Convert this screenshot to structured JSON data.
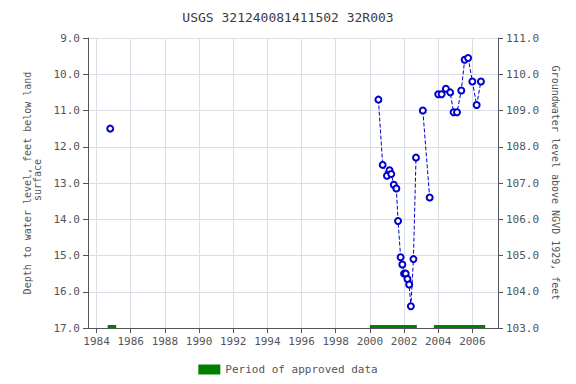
{
  "chart_data": {
    "type": "line",
    "title": "USGS 321240081411502 32R003",
    "ylabel": "Depth to water level, feet below land\n surface",
    "y2label": "Groundwater level above NGVD 1929, feet",
    "xlim": [
      1983.5,
      2007.5
    ],
    "xticks": [
      1984,
      1986,
      1988,
      1990,
      1992,
      1994,
      1996,
      1998,
      2000,
      2002,
      2004,
      2006
    ],
    "ylim": [
      17.0,
      9.0
    ],
    "yticks": [
      {
        "value": 9.0,
        "label": "9.0"
      },
      {
        "value": 10.0,
        "label": "10.0"
      },
      {
        "value": 11.0,
        "label": "11.0"
      },
      {
        "value": 12.0,
        "label": "12.0"
      },
      {
        "value": 13.0,
        "label": "13.0"
      },
      {
        "value": 14.0,
        "label": "14.0"
      },
      {
        "value": 15.0,
        "label": "15.0"
      },
      {
        "value": 16.0,
        "label": "16.0"
      },
      {
        "value": 17.0,
        "label": "17.0"
      }
    ],
    "y2lim": [
      103.0,
      111.0
    ],
    "y2ticks": [
      {
        "value": 103.0,
        "label": "103.0"
      },
      {
        "value": 104.0,
        "label": "104.0"
      },
      {
        "value": 105.0,
        "label": "105.0"
      },
      {
        "value": 106.0,
        "label": "106.0"
      },
      {
        "value": 107.0,
        "label": "107.0"
      },
      {
        "value": 108.0,
        "label": "108.0"
      },
      {
        "value": 109.0,
        "label": "109.0"
      },
      {
        "value": 110.0,
        "label": "110.0"
      },
      {
        "value": 111.0,
        "label": "111.0"
      }
    ],
    "grid": true,
    "legend": "bottom",
    "series": [
      {
        "x": [
          1984.8
        ],
        "values": [
          11.5
        ],
        "color": "#0000CC",
        "marker": "circle-open",
        "line_style": "dashed"
      },
      {
        "x": [
          2000.5,
          2000.75,
          2001.0,
          2001.15,
          2001.25,
          2001.4,
          2001.55,
          2001.65,
          2001.8,
          2001.9,
          2002.0,
          2002.1,
          2002.2,
          2002.3,
          2002.4,
          2002.55,
          2002.7
        ],
        "values": [
          10.7,
          12.5,
          12.8,
          12.65,
          12.75,
          13.05,
          13.15,
          14.05,
          15.05,
          15.25,
          15.5,
          15.5,
          15.65,
          15.8,
          16.4,
          15.1,
          12.3
        ],
        "color": "#0000CC",
        "marker": "circle-open",
        "line_style": "dashed"
      },
      {
        "x": [
          2003.1,
          2003.5
        ],
        "values": [
          11.0,
          13.4
        ],
        "color": "#0000CC",
        "marker": "circle-open",
        "line_style": "dashed"
      },
      {
        "x": [
          2004.0,
          2004.2,
          2004.45,
          2004.7,
          2004.9,
          2005.1,
          2005.35,
          2005.55,
          2005.75,
          2006.0,
          2006.25,
          2006.5
        ],
        "values": [
          10.55,
          10.55,
          10.4,
          10.5,
          11.05,
          11.05,
          10.45,
          9.6,
          9.55,
          10.2,
          10.85,
          10.2
        ],
        "color": "#0000CC",
        "marker": "circle-open",
        "line_style": "dashed"
      }
    ],
    "approved_periods": [
      [
        1984.65,
        1985.15
      ],
      [
        2000.0,
        2002.75
      ],
      [
        2003.75,
        2006.75
      ]
    ],
    "approved_label": "Period of approved data",
    "approved_color": "#008000"
  }
}
